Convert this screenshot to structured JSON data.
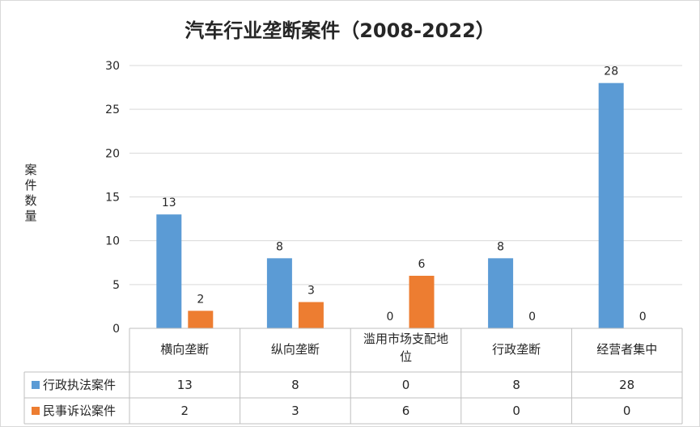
{
  "chart_data": {
    "type": "bar",
    "title": "汽车行业垄断案件（2008-2022）",
    "ylabel": "案件数量",
    "xlabel": "",
    "categories": [
      "横向垄断",
      "纵向垄断",
      "滥用市场支配地位",
      "行政垄断",
      "经营者集中"
    ],
    "series": [
      {
        "name": "行政执法案件",
        "color": "#5B9BD5",
        "values": [
          13,
          8,
          0,
          8,
          28
        ]
      },
      {
        "name": "民事诉讼案件",
        "color": "#ED7D31",
        "values": [
          2,
          3,
          6,
          0,
          0
        ]
      }
    ],
    "ylim": [
      0,
      30
    ],
    "yticks": [
      0,
      5,
      10,
      15,
      20,
      25,
      30
    ],
    "grid": true,
    "data_labels": true,
    "data_table": true
  }
}
